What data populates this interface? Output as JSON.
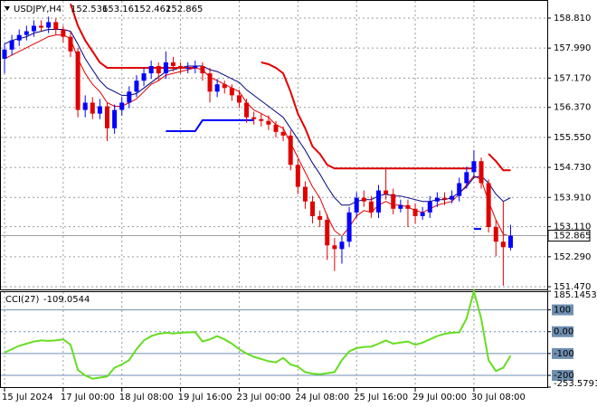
{
  "chart_data": [
    {
      "type": "candlestick",
      "symbol": "USDJPY,H4",
      "up_color": "#0000ff",
      "down_color": "#e00000",
      "grid": true,
      "ylim": [
        151.396,
        159.255
      ],
      "yticks": [
        {
          "value": 158.81,
          "label": "158.810"
        },
        {
          "value": 157.99,
          "label": "157.990"
        },
        {
          "value": 157.17,
          "label": "157.170"
        },
        {
          "value": 156.37,
          "label": "156.370"
        },
        {
          "value": 155.55,
          "label": "155.550"
        },
        {
          "value": 154.73,
          "label": "154.730"
        },
        {
          "value": 153.91,
          "label": "153.910"
        },
        {
          "value": 153.11,
          "label": "153.110"
        },
        {
          "value": 152.29,
          "label": "152.290"
        },
        {
          "value": 151.47,
          "label": "151.470"
        }
      ],
      "open": [
        157.7,
        157.95,
        158.2,
        158.35,
        158.45,
        158.6,
        158.55,
        158.7,
        158.5,
        158.3,
        157.9,
        156.3,
        156.5,
        156.2,
        156.4,
        155.8,
        156.3,
        156.5,
        156.8,
        157.1,
        157.3,
        157.5,
        157.3,
        157.6,
        157.5,
        157.45,
        157.45,
        157.5,
        157.3,
        156.8,
        157.0,
        156.9,
        156.7,
        156.5,
        156.1,
        156.05,
        156.0,
        155.9,
        155.7,
        155.6,
        154.8,
        154.2,
        153.8,
        153.4,
        153.3,
        152.6,
        152.5,
        152.7,
        153.5,
        153.9,
        153.8,
        153.5,
        154.1,
        154.0,
        153.6,
        153.7,
        153.6,
        153.4,
        153.5,
        153.8,
        153.9,
        153.85,
        153.95,
        154.3,
        154.6,
        154.9,
        154.3,
        153.1,
        152.7,
        152.536
      ],
      "high": [
        158.1,
        158.35,
        158.5,
        158.6,
        158.75,
        158.75,
        158.85,
        158.8,
        158.6,
        158.45,
        158.0,
        156.7,
        156.65,
        156.6,
        156.5,
        156.45,
        156.65,
        156.95,
        157.25,
        157.45,
        157.65,
        157.6,
        157.9,
        157.75,
        157.6,
        157.6,
        157.65,
        157.6,
        157.45,
        157.15,
        157.1,
        157.0,
        156.85,
        156.6,
        156.25,
        156.2,
        156.15,
        156.0,
        155.85,
        155.75,
        154.95,
        154.35,
        153.95,
        153.55,
        153.45,
        152.8,
        152.85,
        153.65,
        154.05,
        154.1,
        153.95,
        154.25,
        154.7,
        154.15,
        153.85,
        153.85,
        153.75,
        153.65,
        153.95,
        154.05,
        154.05,
        154.1,
        154.45,
        154.75,
        155.2,
        155.0,
        154.4,
        153.3,
        153.8,
        153.161
      ],
      "low": [
        157.3,
        157.8,
        158.05,
        158.2,
        158.3,
        158.45,
        158.4,
        158.35,
        158.15,
        157.75,
        156.1,
        156.1,
        156.05,
        156.05,
        155.45,
        155.65,
        156.15,
        156.35,
        156.65,
        156.95,
        157.15,
        157.1,
        157.15,
        157.35,
        157.3,
        157.3,
        157.3,
        157.1,
        156.5,
        156.65,
        156.75,
        156.55,
        156.35,
        155.95,
        155.9,
        155.85,
        155.75,
        155.55,
        155.45,
        154.65,
        154.0,
        153.6,
        153.2,
        153.1,
        152.2,
        151.9,
        152.1,
        152.55,
        153.35,
        153.65,
        153.35,
        153.35,
        153.85,
        153.45,
        153.5,
        153.1,
        153.2,
        153.3,
        153.35,
        153.65,
        153.7,
        153.75,
        153.8,
        154.15,
        154.45,
        154.15,
        152.95,
        152.3,
        151.5,
        152.462
      ],
      "close": [
        157.95,
        158.2,
        158.35,
        158.45,
        158.6,
        158.55,
        158.7,
        158.5,
        158.3,
        157.9,
        156.3,
        156.5,
        156.2,
        156.4,
        155.8,
        156.3,
        156.5,
        156.8,
        157.1,
        157.3,
        157.5,
        157.3,
        157.6,
        157.5,
        157.45,
        157.45,
        157.5,
        157.3,
        156.8,
        157.0,
        156.9,
        156.7,
        156.5,
        156.1,
        156.05,
        156.0,
        155.9,
        155.7,
        155.6,
        154.8,
        154.2,
        153.8,
        153.4,
        153.3,
        152.6,
        152.5,
        152.7,
        153.5,
        153.9,
        153.8,
        153.5,
        154.1,
        154.0,
        153.6,
        153.7,
        153.6,
        153.4,
        153.5,
        153.8,
        153.9,
        153.85,
        153.95,
        154.3,
        154.6,
        154.9,
        154.3,
        153.1,
        152.7,
        152.55,
        152.865
      ],
      "overlays": [
        {
          "color": "#e00000",
          "values": [
            157.7,
            157.8,
            157.9,
            158.0,
            158.1,
            158.2,
            158.3,
            158.35,
            158.35,
            158.25,
            157.7,
            157.3,
            157.0,
            156.8,
            156.5,
            156.4,
            156.4,
            156.5,
            156.6,
            156.8,
            157.0,
            157.1,
            157.25,
            157.3,
            157.35,
            157.4,
            157.45,
            157.4,
            157.2,
            157.1,
            157.0,
            156.9,
            156.8,
            156.5,
            156.3,
            156.2,
            156.1,
            155.9,
            155.8,
            155.4,
            155.0,
            154.6,
            154.2,
            153.9,
            153.4,
            153.0,
            152.85,
            153.1,
            153.4,
            153.55,
            153.5,
            153.7,
            153.8,
            153.7,
            153.7,
            153.65,
            153.55,
            153.5,
            153.6,
            153.7,
            153.75,
            153.8,
            154.0,
            154.25,
            154.5,
            154.4,
            153.8,
            153.3,
            152.9,
            152.85
          ]
        },
        {
          "color": "#000080",
          "values": [
            158.1,
            158.2,
            158.25,
            158.3,
            158.4,
            158.45,
            158.5,
            158.5,
            158.5,
            158.45,
            158.1,
            157.7,
            157.4,
            157.1,
            156.9,
            156.8,
            156.7,
            156.7,
            156.75,
            156.9,
            157.05,
            157.2,
            157.35,
            157.4,
            157.45,
            157.5,
            157.5,
            157.5,
            157.4,
            157.35,
            157.25,
            157.15,
            157.05,
            156.85,
            156.7,
            156.55,
            156.4,
            156.25,
            156.1,
            155.8,
            155.5,
            155.2,
            154.85,
            154.55,
            154.2,
            153.9,
            153.7,
            153.7,
            153.8,
            153.85,
            153.85,
            153.95,
            154.0,
            153.95,
            153.95,
            153.9,
            153.85,
            153.8,
            153.8,
            153.85,
            153.85,
            153.9,
            154.05,
            154.2,
            154.45,
            154.5,
            154.3,
            154.0,
            153.8,
            153.9
          ]
        },
        {
          "color": "#e00000",
          "values": [
            null,
            null,
            null,
            null,
            null,
            null,
            null,
            null,
            null,
            159.2,
            158.6,
            158.2,
            157.9,
            157.6,
            157.45,
            157.45,
            157.45,
            157.45,
            157.45,
            157.45,
            157.45,
            157.45,
            157.45,
            157.45,
            157.45,
            157.45,
            157.45,
            null,
            null,
            null,
            null,
            null,
            null,
            null,
            null,
            157.6,
            157.55,
            157.45,
            157.3,
            156.8,
            156.2,
            155.8,
            155.3,
            155.1,
            154.8,
            154.7,
            154.7,
            154.7,
            154.7,
            154.7,
            154.7,
            154.7,
            154.7,
            154.7,
            154.7,
            154.7,
            154.7,
            154.7,
            154.7,
            154.7,
            154.7,
            154.7,
            154.7,
            154.7,
            154.7,
            null,
            155.1,
            154.9,
            154.65,
            154.65
          ]
        },
        {
          "color": "#0000ff",
          "values": [
            null,
            null,
            null,
            null,
            null,
            null,
            null,
            null,
            null,
            null,
            null,
            null,
            null,
            null,
            null,
            null,
            null,
            null,
            null,
            null,
            null,
            null,
            155.72,
            155.72,
            155.72,
            155.72,
            155.72,
            156.02,
            156.02,
            156.02,
            156.02,
            156.02,
            156.02,
            156.02,
            156.02,
            null,
            null,
            null,
            null,
            null,
            null,
            null,
            null,
            null,
            null,
            null,
            null,
            null,
            null,
            null,
            null,
            null,
            null,
            null,
            null,
            null,
            null,
            null,
            null,
            null,
            null,
            null,
            null,
            null,
            153.05,
            153.05,
            null,
            null,
            null,
            null
          ]
        }
      ]
    },
    {
      "type": "line",
      "title": "CCI(27)",
      "color": "#66dd22",
      "levels_color": "#6f8fb0",
      "ylim": [
        -253.5791,
        185.1453
      ],
      "yticks": [
        185.1453,
        100,
        {
          "value": 0,
          "label": "0.00"
        },
        -100,
        -200,
        -253.5791
      ],
      "xlim": [
        0,
        74
      ],
      "xticks": [
        {
          "value": 0,
          "label": "15 Jul 2024"
        },
        {
          "value": 8,
          "label": "17 Jul 00:00"
        },
        {
          "value": 16,
          "label": "18 Jul 08:00"
        },
        {
          "value": 24,
          "label": "19 Jul 16:00"
        },
        {
          "value": 32,
          "label": "23 Jul 00:00"
        },
        {
          "value": 40,
          "label": "24 Jul 08:00"
        },
        {
          "value": 48,
          "label": "25 Jul 16:00"
        },
        {
          "value": 56,
          "label": "29 Jul 00:00"
        },
        {
          "value": 64,
          "label": "30 Jul 08:00"
        }
      ],
      "values": [
        -96,
        -80,
        -65,
        -55,
        -45,
        -40,
        -42,
        -40,
        -35,
        -60,
        -175,
        -200,
        -215,
        -210,
        -205,
        -165,
        -150,
        -130,
        -80,
        -40,
        -20,
        -10,
        -5,
        -8,
        -5,
        -3,
        -2,
        -45,
        -35,
        -20,
        -35,
        -55,
        -80,
        -100,
        -115,
        -125,
        -135,
        -140,
        -120,
        -150,
        -160,
        -185,
        -192,
        -195,
        -190,
        -185,
        -130,
        -90,
        -75,
        -70,
        -68,
        -55,
        -40,
        -55,
        -50,
        -45,
        -60,
        -50,
        -35,
        -20,
        -10,
        -5,
        -3,
        60,
        185.1453,
        60,
        -130,
        -180,
        -165,
        -109.0544
      ]
    }
  ]
}
